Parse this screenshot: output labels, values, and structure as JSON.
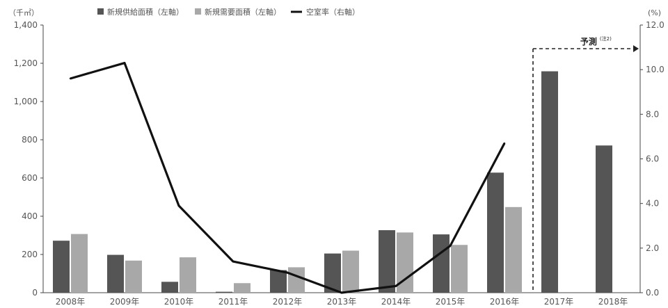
{
  "chart_data": {
    "type": "bar",
    "categories": [
      "2008年",
      "2009年",
      "2010年",
      "2011年",
      "2012年",
      "2013年",
      "2014年",
      "2015年",
      "2016年",
      "2017年",
      "2018年"
    ],
    "series": [
      {
        "name": "新規供給面積（左軸）",
        "axis": "left",
        "type": "bar",
        "color": "#555555",
        "values": [
          272,
          198,
          57,
          5,
          118,
          205,
          327,
          305,
          628,
          1158,
          770
        ]
      },
      {
        "name": "新規需要面積（左軸）",
        "axis": "left",
        "type": "bar",
        "color": "#a8a8a8",
        "values": [
          307,
          168,
          185,
          50,
          133,
          220,
          315,
          250,
          448,
          null,
          null
        ]
      },
      {
        "name": "空室率（右軸）",
        "axis": "right",
        "type": "line",
        "color": "#111111",
        "values": [
          9.6,
          10.3,
          3.9,
          1.4,
          0.9,
          0.0,
          0.3,
          2.1,
          6.7,
          null,
          null
        ]
      }
    ],
    "left_axis": {
      "unit": "（千㎡）",
      "ylim": [
        0,
        1400
      ],
      "ticks": [
        0,
        200,
        400,
        600,
        800,
        1000,
        1200,
        1400
      ],
      "tick_labels": [
        "0",
        "200",
        "400",
        "600",
        "800",
        "1,000",
        "1,200",
        "1,400"
      ]
    },
    "right_axis": {
      "unit": "(%)",
      "ylim": [
        0,
        12
      ],
      "ticks": [
        0,
        2,
        4,
        6,
        8,
        10,
        12
      ],
      "tick_labels": [
        "0.0",
        "2.0",
        "4.0",
        "6.0",
        "8.0",
        "10.0",
        "12.0"
      ]
    },
    "forecast": {
      "label": "予測",
      "note": "(注2)",
      "from_category": "2017年"
    },
    "legend_placement": "top",
    "grid": false
  }
}
